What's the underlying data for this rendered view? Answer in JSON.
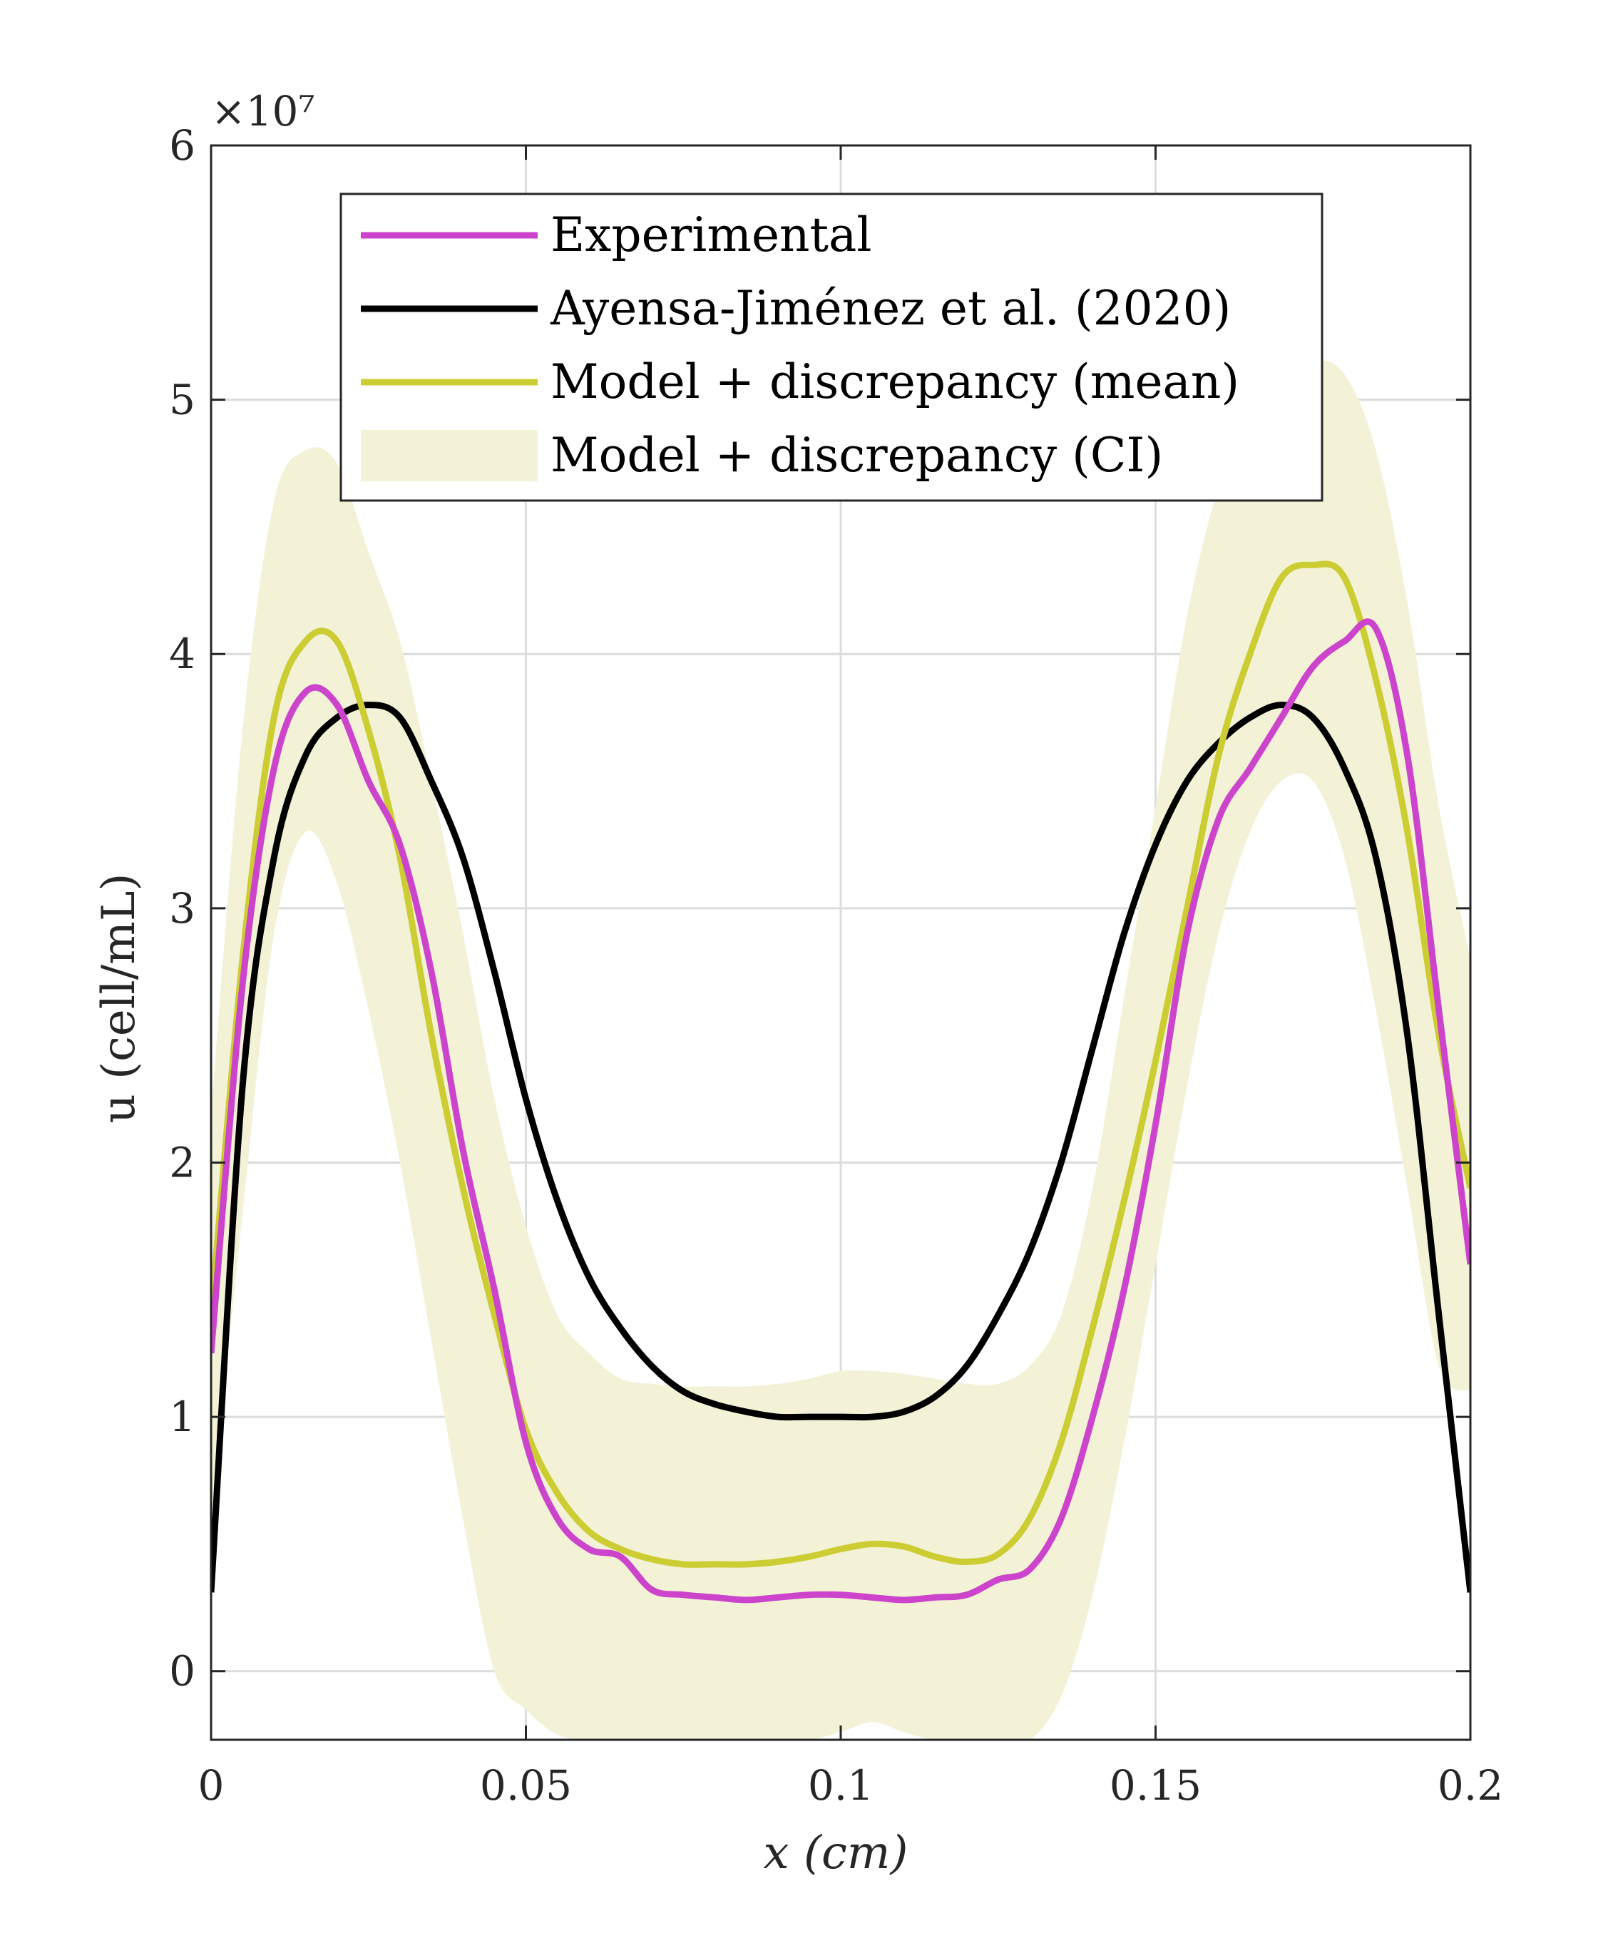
{
  "chart_data": {
    "type": "line",
    "title": "",
    "xlabel": "x (cm)",
    "ylabel": "u (cell/mL)",
    "xlim": [
      0,
      0.2
    ],
    "ylim": [
      -2700000,
      60000000
    ],
    "y_exponent_label": "×10⁷",
    "grid": true,
    "legend_position": "top-center",
    "x_ticks": [
      0,
      0.05,
      0.1,
      0.15,
      0.2
    ],
    "x_tick_labels": [
      "0",
      "0.05",
      "0.1",
      "0.15",
      "0.2"
    ],
    "y_ticks": [
      0,
      10000000,
      20000000,
      30000000,
      40000000,
      50000000,
      60000000
    ],
    "y_tick_labels": [
      "0",
      "1",
      "2",
      "3",
      "4",
      "5",
      "6"
    ],
    "x": [
      0,
      0.005,
      0.01,
      0.015,
      0.02,
      0.025,
      0.03,
      0.035,
      0.04,
      0.045,
      0.05,
      0.055,
      0.06,
      0.065,
      0.07,
      0.075,
      0.08,
      0.085,
      0.09,
      0.095,
      0.1,
      0.105,
      0.11,
      0.115,
      0.12,
      0.125,
      0.13,
      0.135,
      0.14,
      0.145,
      0.15,
      0.155,
      0.16,
      0.165,
      0.17,
      0.175,
      0.18,
      0.185,
      0.19,
      0.195,
      0.2
    ],
    "series": [
      {
        "name": "Experimental",
        "color": "#cc44cc",
        "values": [
          12500000,
          27000000,
          35500000,
          38500000,
          38000000,
          35000000,
          32500000,
          27500000,
          20500000,
          15000000,
          9000000,
          6000000,
          4800000,
          4500000,
          3200000,
          3000000,
          2900000,
          2800000,
          2900000,
          3000000,
          3000000,
          2900000,
          2800000,
          2900000,
          3000000,
          3600000,
          4000000,
          6000000,
          10000000,
          15000000,
          21500000,
          29000000,
          33500000,
          35500000,
          37500000,
          39500000,
          40500000,
          41000000,
          36000000,
          26000000,
          16000000
        ]
      },
      {
        "name": "Ayensa-Jiménez et al. (2020)",
        "color": "#000000",
        "values": [
          3100000,
          23000000,
          32000000,
          36000000,
          37500000,
          38000000,
          37500000,
          35000000,
          32000000,
          27500000,
          22500000,
          18500000,
          15500000,
          13500000,
          12000000,
          11000000,
          10500000,
          10200000,
          10000000,
          10000000,
          10000000,
          10000000,
          10200000,
          10800000,
          12000000,
          14000000,
          16500000,
          20000000,
          24500000,
          29000000,
          32500000,
          35000000,
          36500000,
          37500000,
          38000000,
          37500000,
          35500000,
          32000000,
          25000000,
          14000000,
          3100000
        ]
      },
      {
        "name": "Model + discrepancy (mean)",
        "color": "#cccc33",
        "values": [
          14000000,
          28000000,
          37500000,
          40500000,
          40500000,
          37000000,
          32000000,
          25000000,
          19000000,
          14000000,
          9500000,
          7000000,
          5500000,
          4800000,
          4400000,
          4200000,
          4200000,
          4200000,
          4300000,
          4500000,
          4800000,
          5000000,
          4900000,
          4500000,
          4300000,
          4600000,
          6000000,
          9000000,
          13500000,
          18500000,
          24000000,
          30000000,
          36000000,
          40000000,
          43000000,
          43500000,
          43000000,
          39000000,
          33000000,
          25000000,
          19000000
        ]
      },
      {
        "name": "Model + discrepancy (CI)",
        "color": "#f3f2d6",
        "lower": [
          6000000,
          18000000,
          29000000,
          33000000,
          31000000,
          26000000,
          20000000,
          13000000,
          6000000,
          0,
          -1500000,
          -2500000,
          -2700000,
          -2700000,
          -2700000,
          -2700000,
          -2700000,
          -2700000,
          -2700000,
          -2700000,
          -2400000,
          -2000000,
          -2400000,
          -2700000,
          -2700000,
          -2700000,
          -2700000,
          -1000000,
          3000000,
          9000000,
          16000000,
          23000000,
          29000000,
          33000000,
          35000000,
          35000000,
          32000000,
          26000000,
          19000000,
          12000000,
          11000000
        ],
        "upper": [
          22000000,
          37000000,
          46000000,
          48000000,
          47500000,
          44000000,
          40500000,
          35000000,
          29000000,
          22500000,
          17500000,
          14000000,
          12500000,
          11500000,
          11300000,
          11200000,
          11200000,
          11200000,
          11300000,
          11500000,
          11800000,
          11800000,
          11700000,
          11500000,
          11300000,
          11300000,
          12000000,
          14000000,
          19000000,
          26500000,
          34000000,
          41500000,
          46500000,
          49000000,
          50500000,
          51500000,
          51000000,
          48000000,
          42000000,
          34000000,
          28000000
        ]
      }
    ]
  }
}
